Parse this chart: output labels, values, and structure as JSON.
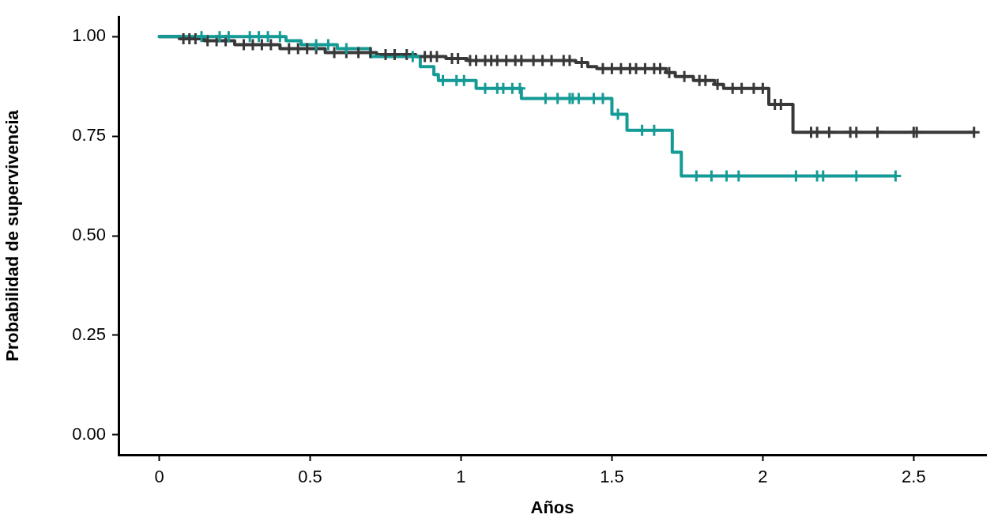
{
  "chart_data": {
    "type": "step",
    "xlabel": "Años",
    "ylabel": "Probabilidad de supervivencia",
    "xlim": [
      -0.135,
      2.74
    ],
    "ylim": [
      -0.05,
      1.05
    ],
    "xticks": [
      0,
      0.5,
      1,
      1.5,
      2,
      2.5
    ],
    "yticks": [
      {
        "value": 0,
        "label": "0.00"
      },
      {
        "value": 0.25,
        "label": "0.25"
      },
      {
        "value": 0.5,
        "label": "0.50"
      },
      {
        "value": 0.75,
        "label": "0.75"
      },
      {
        "value": 1,
        "label": "1.00"
      }
    ],
    "grid": false,
    "legend": false,
    "line_style": "solid",
    "series": [
      {
        "type": "step",
        "color": "#159b96",
        "marker": "none",
        "x": [
          0,
          0.42,
          0.47,
          0.59,
          0.7,
          0.865,
          0.91,
          0.925,
          1.05,
          1.2,
          1.5,
          1.55,
          1.7,
          1.73,
          2.44
        ],
        "values": [
          1.0,
          0.99,
          0.98,
          0.97,
          0.95,
          0.925,
          0.905,
          0.89,
          0.87,
          0.845,
          0.805,
          0.765,
          0.71,
          0.65,
          0.65
        ]
      },
      {
        "type": "step",
        "color": "#383838",
        "marker": "none",
        "x": [
          0,
          0.07,
          0.15,
          0.25,
          0.4,
          0.55,
          0.72,
          0.85,
          0.95,
          1.02,
          1.38,
          1.42,
          1.45,
          1.68,
          1.71,
          1.77,
          1.84,
          1.87,
          2.02,
          2.1,
          2.7
        ],
        "values": [
          1.0,
          0.995,
          0.99,
          0.98,
          0.97,
          0.96,
          0.955,
          0.95,
          0.945,
          0.94,
          0.935,
          0.925,
          0.92,
          0.91,
          0.9,
          0.89,
          0.88,
          0.87,
          0.83,
          0.76,
          0.76
        ]
      },
      {
        "type": "scatter",
        "color": "#159b96",
        "marker": "cross",
        "x": [
          0.14,
          0.2,
          0.23,
          0.3,
          0.33,
          0.36,
          0.4,
          0.52,
          0.56,
          0.62,
          0.84,
          0.94,
          0.985,
          1.01,
          1.08,
          1.12,
          1.14,
          1.17,
          1.195,
          1.28,
          1.32,
          1.36,
          1.37,
          1.39,
          1.44,
          1.47,
          1.52,
          1.6,
          1.64,
          1.78,
          1.83,
          1.88,
          1.92,
          2.11,
          2.18,
          2.2,
          2.31,
          2.44
        ],
        "values": [
          1.0,
          1.0,
          1.0,
          1.0,
          1.0,
          1.0,
          1.0,
          0.98,
          0.98,
          0.97,
          0.95,
          0.89,
          0.89,
          0.89,
          0.87,
          0.87,
          0.87,
          0.87,
          0.87,
          0.845,
          0.845,
          0.845,
          0.845,
          0.845,
          0.845,
          0.845,
          0.805,
          0.765,
          0.765,
          0.65,
          0.65,
          0.65,
          0.65,
          0.65,
          0.65,
          0.65,
          0.65,
          0.65
        ]
      },
      {
        "type": "scatter",
        "color": "#383838",
        "marker": "cross",
        "x": [
          0.08,
          0.1,
          0.12,
          0.16,
          0.19,
          0.22,
          0.28,
          0.31,
          0.34,
          0.37,
          0.43,
          0.46,
          0.49,
          0.52,
          0.58,
          0.62,
          0.66,
          0.7,
          0.75,
          0.78,
          0.82,
          0.88,
          0.9,
          0.92,
          0.97,
          0.99,
          1.03,
          1.05,
          1.08,
          1.1,
          1.12,
          1.15,
          1.18,
          1.2,
          1.24,
          1.27,
          1.3,
          1.34,
          1.36,
          1.4,
          1.47,
          1.5,
          1.53,
          1.56,
          1.58,
          1.61,
          1.64,
          1.66,
          1.69,
          1.74,
          1.79,
          1.81,
          1.85,
          1.9,
          1.93,
          1.97,
          2.0,
          2.04,
          2.06,
          2.16,
          2.18,
          2.22,
          2.29,
          2.31,
          2.38,
          2.5,
          2.51,
          2.7
        ],
        "values": [
          0.995,
          0.995,
          0.995,
          0.99,
          0.99,
          0.99,
          0.98,
          0.98,
          0.98,
          0.98,
          0.97,
          0.97,
          0.97,
          0.97,
          0.96,
          0.96,
          0.96,
          0.96,
          0.955,
          0.955,
          0.955,
          0.95,
          0.95,
          0.95,
          0.945,
          0.945,
          0.94,
          0.94,
          0.94,
          0.94,
          0.94,
          0.94,
          0.94,
          0.94,
          0.94,
          0.94,
          0.94,
          0.94,
          0.94,
          0.935,
          0.92,
          0.92,
          0.92,
          0.92,
          0.92,
          0.92,
          0.92,
          0.92,
          0.91,
          0.9,
          0.89,
          0.89,
          0.88,
          0.87,
          0.87,
          0.87,
          0.87,
          0.83,
          0.83,
          0.76,
          0.76,
          0.76,
          0.76,
          0.76,
          0.76,
          0.76,
          0.76,
          0.76
        ]
      }
    ]
  }
}
